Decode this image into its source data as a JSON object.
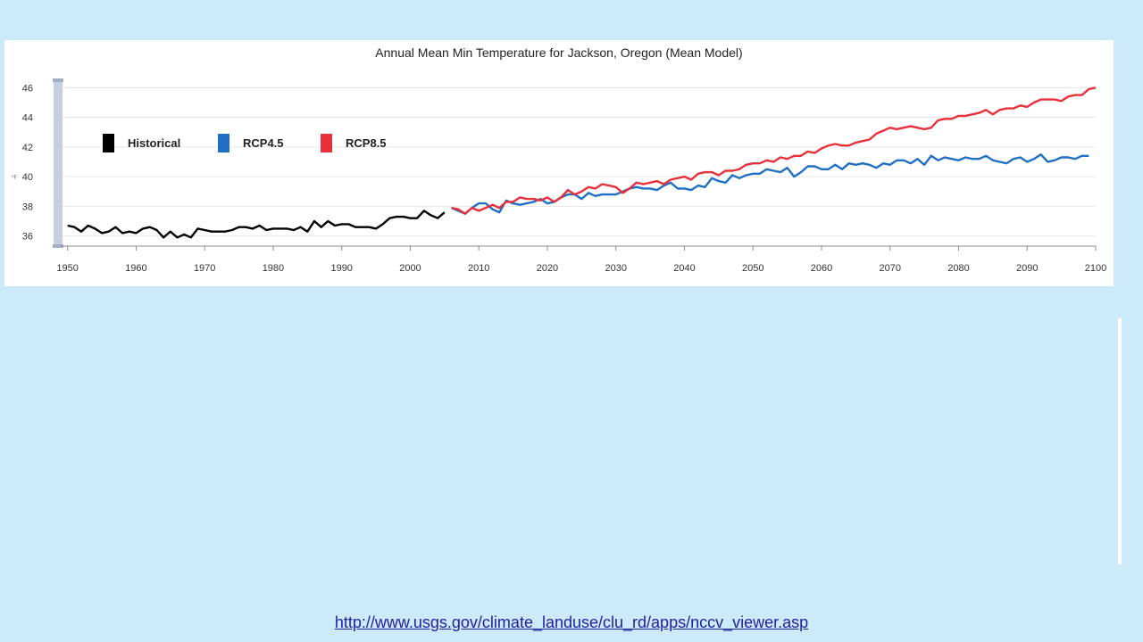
{
  "source": {
    "url": "http://www.usgs.gov/climate_landuse/clu_rd/apps/nccv_viewer.asp"
  },
  "chart_data": {
    "type": "line",
    "title": "Annual Mean Min Temperature for Jackson, Oregon (Mean Model)",
    "ylabel": "°F",
    "xlabel": "",
    "xlim": [
      1949,
      2100
    ],
    "ylim": [
      35.5,
      46.5
    ],
    "x_ticks": [
      1950,
      1960,
      1970,
      1980,
      1990,
      2000,
      2010,
      2020,
      2030,
      2040,
      2050,
      2060,
      2070,
      2080,
      2090,
      2100
    ],
    "y_ticks": [
      36,
      38,
      40,
      42,
      44,
      46
    ],
    "grid": true,
    "legend_position": "top-left",
    "series": [
      {
        "name": "Historical",
        "color": "#000000",
        "x_start": 1950,
        "values": [
          36.7,
          36.6,
          36.3,
          36.7,
          36.5,
          36.2,
          36.3,
          36.6,
          36.2,
          36.3,
          36.2,
          36.5,
          36.6,
          36.4,
          35.9,
          36.3,
          35.9,
          36.1,
          35.9,
          36.5,
          36.4,
          36.3,
          36.3,
          36.3,
          36.4,
          36.6,
          36.6,
          36.5,
          36.7,
          36.4,
          36.5,
          36.5,
          36.5,
          36.4,
          36.6,
          36.3,
          37.0,
          36.6,
          37.0,
          36.7,
          36.8,
          36.8,
          36.6,
          36.6,
          36.6,
          36.5,
          36.8,
          37.2,
          37.3,
          37.3,
          37.2,
          37.2,
          37.7,
          37.4,
          37.2,
          37.6
        ]
      },
      {
        "name": "RCP4.5",
        "color": "#1f6fc4",
        "x_start": 2006,
        "values": [
          37.9,
          37.7,
          37.5,
          37.9,
          38.2,
          38.2,
          37.8,
          37.6,
          38.4,
          38.2,
          38.1,
          38.2,
          38.3,
          38.5,
          38.2,
          38.3,
          38.6,
          38.8,
          38.8,
          38.5,
          38.9,
          38.7,
          38.8,
          38.8,
          38.8,
          39.0,
          39.2,
          39.3,
          39.2,
          39.2,
          39.1,
          39.4,
          39.6,
          39.2,
          39.2,
          39.1,
          39.4,
          39.3,
          39.9,
          39.7,
          39.6,
          40.1,
          39.9,
          40.1,
          40.2,
          40.2,
          40.5,
          40.4,
          40.3,
          40.6,
          40.0,
          40.3,
          40.7,
          40.7,
          40.5,
          40.5,
          40.8,
          40.5,
          40.9,
          40.8,
          40.9,
          40.8,
          40.6,
          40.9,
          40.8,
          41.1,
          41.1,
          40.9,
          41.2,
          40.8,
          41.4,
          41.1,
          41.3,
          41.2,
          41.1,
          41.3,
          41.2,
          41.2,
          41.4,
          41.1,
          41.0,
          40.9,
          41.2,
          41.3,
          41.0,
          41.2,
          41.5,
          41.0,
          41.1,
          41.3,
          41.3,
          41.2,
          41.4,
          41.4
        ]
      },
      {
        "name": "RCP8.5",
        "color": "#e8303a",
        "x_start": 2006,
        "values": [
          37.9,
          37.8,
          37.5,
          37.9,
          37.7,
          37.9,
          38.1,
          37.9,
          38.3,
          38.3,
          38.6,
          38.5,
          38.5,
          38.4,
          38.6,
          38.3,
          38.6,
          39.1,
          38.8,
          39.0,
          39.3,
          39.2,
          39.5,
          39.4,
          39.3,
          38.9,
          39.2,
          39.6,
          39.5,
          39.6,
          39.7,
          39.5,
          39.8,
          39.9,
          40.0,
          39.8,
          40.2,
          40.3,
          40.3,
          40.1,
          40.4,
          40.4,
          40.5,
          40.8,
          40.9,
          40.9,
          41.1,
          41.0,
          41.3,
          41.2,
          41.4,
          41.4,
          41.7,
          41.6,
          41.9,
          42.1,
          42.2,
          42.1,
          42.1,
          42.3,
          42.4,
          42.5,
          42.9,
          43.1,
          43.3,
          43.2,
          43.3,
          43.4,
          43.3,
          43.2,
          43.3,
          43.8,
          43.9,
          43.9,
          44.1,
          44.1,
          44.2,
          44.3,
          44.5,
          44.2,
          44.5,
          44.6,
          44.6,
          44.8,
          44.7,
          45.0,
          45.2,
          45.2,
          45.2,
          45.1,
          45.4,
          45.5,
          45.5,
          45.9,
          46.0
        ]
      }
    ]
  }
}
